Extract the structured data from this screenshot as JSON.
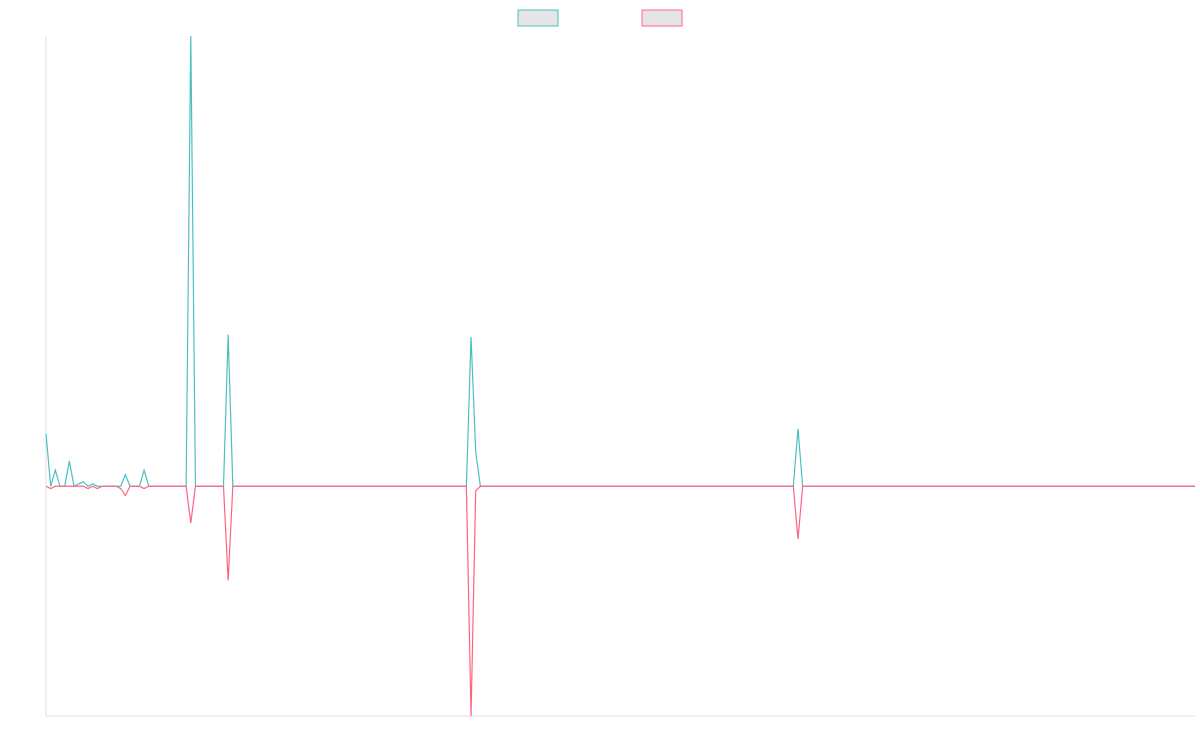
{
  "chart_data": {
    "type": "line",
    "title": "",
    "xlabel": "",
    "ylabel": "",
    "legend_placement": "top-center",
    "grid": false,
    "ylim": [
      -100,
      196
    ],
    "series": [
      {
        "name": "",
        "color": "#4bc0c0",
        "fill": "#e5e5e5",
        "points": [
          [
            0,
            23
          ],
          [
            1,
            0
          ],
          [
            2,
            7
          ],
          [
            3,
            0
          ],
          [
            4,
            0
          ],
          [
            5,
            11
          ],
          [
            6,
            0
          ],
          [
            7,
            1
          ],
          [
            8,
            2
          ],
          [
            9,
            0
          ],
          [
            10,
            1
          ],
          [
            11,
            0
          ],
          [
            15,
            0
          ],
          [
            16,
            0
          ],
          [
            17,
            5
          ],
          [
            18,
            0
          ],
          [
            20,
            0
          ],
          [
            21,
            7
          ],
          [
            22,
            0
          ],
          [
            30,
            0
          ],
          [
            31,
            196
          ],
          [
            32,
            0
          ],
          [
            38,
            0
          ],
          [
            39,
            66
          ],
          [
            40,
            0
          ],
          [
            42,
            0
          ],
          [
            43,
            0
          ],
          [
            45,
            0
          ],
          [
            90,
            0
          ],
          [
            91,
            65
          ],
          [
            92,
            15
          ],
          [
            93,
            0
          ],
          [
            160,
            0
          ],
          [
            161,
            25
          ],
          [
            162,
            0
          ],
          [
            165,
            0
          ],
          [
            180,
            0
          ],
          [
            246,
            0
          ]
        ]
      },
      {
        "name": "",
        "color": "#ff6384",
        "fill": "#e5e5e5",
        "points": [
          [
            0,
            0
          ],
          [
            1,
            -1
          ],
          [
            2,
            0
          ],
          [
            3,
            0
          ],
          [
            5,
            0
          ],
          [
            6,
            0
          ],
          [
            7,
            0
          ],
          [
            8,
            0
          ],
          [
            9,
            -1
          ],
          [
            10,
            0
          ],
          [
            11,
            -1
          ],
          [
            12,
            0
          ],
          [
            15,
            0
          ],
          [
            16,
            -1
          ],
          [
            17,
            -4
          ],
          [
            18,
            0
          ],
          [
            20,
            0
          ],
          [
            21,
            -1
          ],
          [
            22,
            0
          ],
          [
            30,
            0
          ],
          [
            31,
            -16
          ],
          [
            32,
            0
          ],
          [
            38,
            0
          ],
          [
            39,
            -41
          ],
          [
            40,
            0
          ],
          [
            90,
            0
          ],
          [
            91,
            -100
          ],
          [
            92,
            -2
          ],
          [
            93,
            0
          ],
          [
            160,
            0
          ],
          [
            161,
            -23
          ],
          [
            162,
            0
          ],
          [
            180,
            0
          ],
          [
            246,
            0
          ]
        ]
      }
    ]
  }
}
